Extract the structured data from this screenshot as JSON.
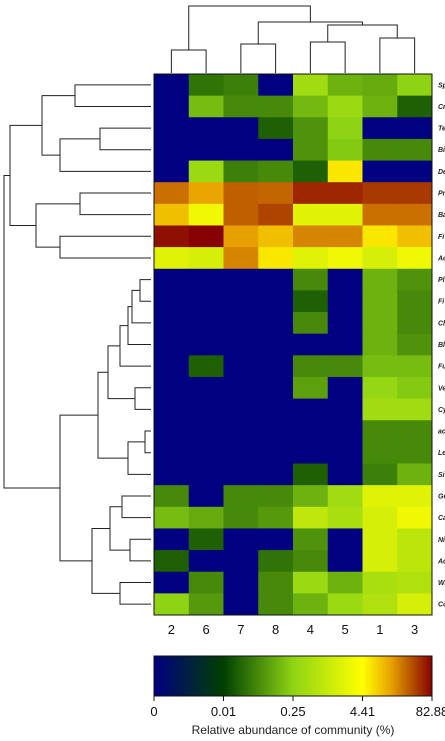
{
  "chart_data": {
    "type": "heatmap",
    "title": "",
    "columns": [
      "2",
      "6",
      "7",
      "8",
      "4",
      "5",
      "1",
      "3"
    ],
    "rows": [
      "Sp",
      "Cr",
      "Te",
      "Bi",
      "De",
      "Pr",
      "Ba",
      "Fi",
      "Ac",
      "Pl",
      "Fi",
      "Ch",
      "Bl",
      "Fu",
      "Ve",
      "Cy",
      "ac",
      "Le",
      "Si",
      "Ge",
      "Ca",
      "Ni",
      "Ac",
      "Wi",
      "Co"
    ],
    "values": [
      [
        0.0,
        0.03,
        0.04,
        0.0,
        0.4,
        0.12,
        0.1,
        0.25
      ],
      [
        0.0,
        0.15,
        0.05,
        0.05,
        0.14,
        0.35,
        0.12,
        0.02
      ],
      [
        0.0,
        0.0,
        0.0,
        0.02,
        0.06,
        0.25,
        0.0,
        0.0
      ],
      [
        0.0,
        0.0,
        0.0,
        0.0,
        0.06,
        0.2,
        0.05,
        0.05
      ],
      [
        0.0,
        0.35,
        0.04,
        0.05,
        0.02,
        6.0,
        0.0,
        0.0
      ],
      [
        25.0,
        14.0,
        30.0,
        28.0,
        55.0,
        55.0,
        45.0,
        45.0
      ],
      [
        10.0,
        3.0,
        30.0,
        40.0,
        2.0,
        2.0,
        25.0,
        25.0
      ],
      [
        70.0,
        82.0,
        15.0,
        10.0,
        20.0,
        20.0,
        6.0,
        10.0
      ],
      [
        2.0,
        1.5,
        20.0,
        6.0,
        2.0,
        3.0,
        1.5,
        3.0
      ],
      [
        0.0,
        0.0,
        0.0,
        0.0,
        0.05,
        0.0,
        0.12,
        0.06
      ],
      [
        0.0,
        0.0,
        0.0,
        0.0,
        0.02,
        0.0,
        0.12,
        0.05
      ],
      [
        0.0,
        0.0,
        0.0,
        0.0,
        0.05,
        0.0,
        0.12,
        0.05
      ],
      [
        0.0,
        0.0,
        0.0,
        0.0,
        0.0,
        0.0,
        0.12,
        0.06
      ],
      [
        0.0,
        0.02,
        0.0,
        0.0,
        0.05,
        0.05,
        0.15,
        0.15
      ],
      [
        0.0,
        0.0,
        0.0,
        0.0,
        0.08,
        0.0,
        0.3,
        0.2
      ],
      [
        0.0,
        0.0,
        0.0,
        0.0,
        0.0,
        0.0,
        0.4,
        0.4
      ],
      [
        0.0,
        0.0,
        0.0,
        0.0,
        0.0,
        0.0,
        0.05,
        0.05
      ],
      [
        0.0,
        0.0,
        0.0,
        0.0,
        0.0,
        0.0,
        0.05,
        0.05
      ],
      [
        0.0,
        0.0,
        0.0,
        0.0,
        0.02,
        0.0,
        0.04,
        0.12
      ],
      [
        0.05,
        0.0,
        0.05,
        0.05,
        0.12,
        0.4,
        2.0,
        2.0
      ],
      [
        0.15,
        0.1,
        0.05,
        0.07,
        0.9,
        0.5,
        1.5,
        3.0
      ],
      [
        0.0,
        0.02,
        0.0,
        0.0,
        0.06,
        0.0,
        1.5,
        0.8
      ],
      [
        0.02,
        0.0,
        0.0,
        0.03,
        0.05,
        0.0,
        1.5,
        0.8
      ],
      [
        0.0,
        0.05,
        0.0,
        0.05,
        0.35,
        0.12,
        0.5,
        0.6
      ],
      [
        0.25,
        0.07,
        0.0,
        0.05,
        0.12,
        0.35,
        0.6,
        1.5
      ]
    ],
    "colorbar": {
      "ticks": [
        "0",
        "0.01",
        "0.25",
        "4.41",
        "82.88"
      ],
      "label": "Relative abundance of community (%)",
      "colors": [
        "#000080",
        "#004000",
        "#8ed414",
        "#ffff00",
        "#e9a500",
        "#860000"
      ]
    }
  }
}
